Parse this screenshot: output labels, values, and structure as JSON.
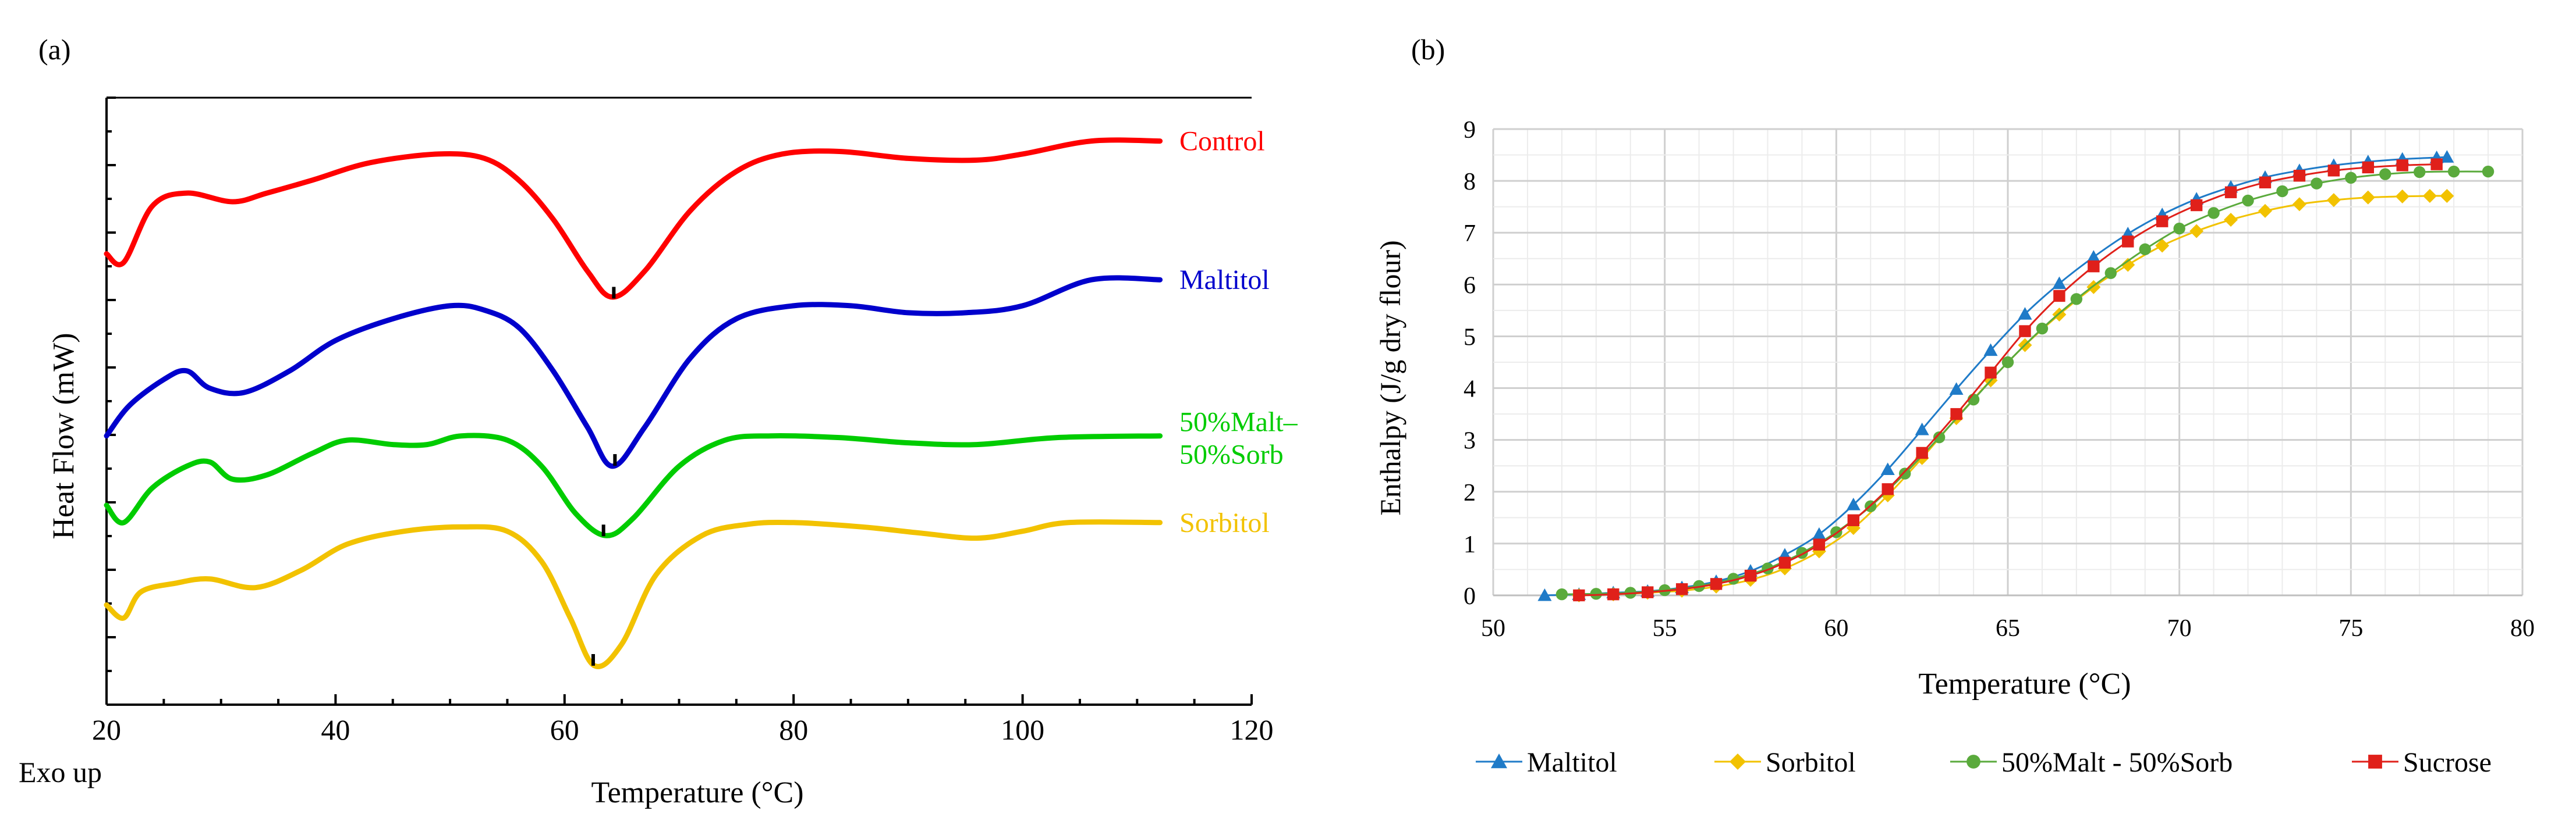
{
  "chart_data": [
    {
      "panel_label": "(a)",
      "type": "line",
      "title": "",
      "xlabel": "Temperature (°C)",
      "ylabel": "Heat Flow (mW)",
      "corner_note": "Exo up",
      "xlim": [
        20,
        120
      ],
      "xticks": [
        "20",
        "40",
        "60",
        "80",
        "100",
        "120"
      ],
      "yunits": "arbitrary (stacked, unlabeled ticks)",
      "series": [
        {
          "name": "Control",
          "color": "#ff0000",
          "x": [
            20,
            21.5,
            24,
            27,
            31,
            34,
            38,
            43,
            49,
            53,
            56,
            59,
            62,
            64.2,
            67,
            71,
            75,
            79,
            84,
            90,
            96,
            100,
            106,
            112
          ],
          "y": [
            5.2,
            5.1,
            5.75,
            5.9,
            5.8,
            5.9,
            6.05,
            6.25,
            6.35,
            6.3,
            6.05,
            5.6,
            5.0,
            4.7,
            5.0,
            5.7,
            6.15,
            6.35,
            6.38,
            6.3,
            6.28,
            6.35,
            6.5,
            6.5
          ],
          "min_marker_x": 64.3
        },
        {
          "name": "Maltitol",
          "color": "#0000cc",
          "x": [
            20,
            22,
            25,
            27,
            29,
            32,
            36,
            40,
            45,
            50,
            53,
            56,
            59,
            62,
            64.2,
            67,
            71,
            75,
            80,
            85,
            90,
            95,
            100,
            106,
            112
          ],
          "y": [
            3.1,
            3.45,
            3.75,
            3.85,
            3.65,
            3.6,
            3.85,
            4.2,
            4.45,
            4.6,
            4.55,
            4.35,
            3.85,
            3.2,
            2.75,
            3.2,
            4.0,
            4.45,
            4.6,
            4.6,
            4.52,
            4.52,
            4.6,
            4.9,
            4.9
          ],
          "min_marker_x": 64.4
        },
        {
          "name": "50%Malt–\n50%Sorb",
          "color": "#00cc00",
          "x": [
            20,
            21.5,
            24,
            27,
            29,
            31,
            34,
            38,
            41,
            45,
            48,
            51,
            55,
            58,
            61,
            63.6,
            66,
            70,
            74,
            78,
            84,
            90,
            96,
            103,
            112
          ],
          "y": [
            2.3,
            2.1,
            2.5,
            2.75,
            2.8,
            2.6,
            2.65,
            2.9,
            3.05,
            3.0,
            3.0,
            3.1,
            3.05,
            2.75,
            2.2,
            1.95,
            2.15,
            2.75,
            3.05,
            3.1,
            3.08,
            3.02,
            3.0,
            3.08,
            3.1
          ],
          "min_marker_x": 63.4
        },
        {
          "name": "Sorbitol",
          "color": "#f2c200",
          "x": [
            20,
            21.5,
            23,
            26,
            29,
            33,
            37,
            41,
            46,
            51,
            55,
            58,
            60.5,
            62.6,
            65,
            68,
            72,
            76,
            80,
            86,
            91,
            96,
            100,
            104,
            112
          ],
          "y": [
            1.15,
            1.0,
            1.3,
            1.4,
            1.45,
            1.35,
            1.55,
            1.85,
            2.0,
            2.05,
            2.0,
            1.65,
            1.0,
            0.45,
            0.7,
            1.5,
            1.95,
            2.08,
            2.1,
            2.05,
            1.98,
            1.92,
            2.0,
            2.1,
            2.1
          ],
          "min_marker_x": 62.5
        }
      ]
    },
    {
      "panel_label": "(b)",
      "type": "line",
      "title": "",
      "xlabel": "Temperature (°C)",
      "ylabel": "Enthalpy (J/g dry flour)",
      "xlim": [
        50,
        80
      ],
      "ylim": [
        0,
        9
      ],
      "xticks": [
        "50",
        "55",
        "60",
        "65",
        "70",
        "75",
        "80"
      ],
      "yticks": [
        "0",
        "1",
        "2",
        "3",
        "4",
        "5",
        "6",
        "7",
        "8",
        "9"
      ],
      "grid": true,
      "legend_position": "bottom",
      "series": [
        {
          "name": "Maltitol",
          "color": "#1f7bc8",
          "marker": "triangle",
          "x": [
            51.5,
            52.5,
            53.5,
            54.5,
            55.5,
            56.5,
            57.5,
            58.5,
            59.5,
            60.5,
            61.5,
            62.5,
            63.5,
            64.5,
            65.5,
            66.5,
            67.5,
            68.5,
            69.5,
            70.5,
            71.5,
            72.5,
            73.5,
            74.5,
            75.5,
            76.5,
            77.5,
            77.8
          ],
          "y": [
            0,
            0.02,
            0.05,
            0.08,
            0.15,
            0.27,
            0.47,
            0.78,
            1.18,
            1.75,
            2.43,
            3.2,
            3.98,
            4.73,
            5.43,
            6.02,
            6.53,
            6.98,
            7.35,
            7.65,
            7.88,
            8.07,
            8.2,
            8.3,
            8.37,
            8.42,
            8.45,
            8.46
          ]
        },
        {
          "name": "Sorbitol",
          "color": "#f2c200",
          "marker": "diamond",
          "x": [
            52.5,
            53.5,
            54.5,
            55.5,
            56.5,
            57.5,
            58.5,
            59.5,
            60.5,
            61.5,
            62.5,
            63.5,
            64.5,
            65.5,
            66.5,
            67.5,
            68.5,
            69.5,
            70.5,
            71.5,
            72.5,
            73.5,
            74.5,
            75.5,
            76.5,
            77.3,
            77.8
          ],
          "y": [
            0,
            0.02,
            0.05,
            0.09,
            0.17,
            0.3,
            0.52,
            0.85,
            1.3,
            1.93,
            2.65,
            3.42,
            4.15,
            4.83,
            5.42,
            5.95,
            6.38,
            6.75,
            7.03,
            7.25,
            7.42,
            7.55,
            7.63,
            7.68,
            7.7,
            7.71,
            7.71
          ]
        },
        {
          "name": "50%Malt - 50%Sorb",
          "color": "#5aaa3c",
          "marker": "circle",
          "x": [
            52,
            53,
            54,
            55,
            56,
            57,
            58,
            59,
            60,
            61,
            62,
            63,
            64,
            65,
            66,
            67,
            68,
            69,
            70,
            71,
            72,
            73,
            74,
            75,
            76,
            77,
            78,
            79
          ],
          "y": [
            0.02,
            0.03,
            0.05,
            0.1,
            0.18,
            0.32,
            0.52,
            0.82,
            1.22,
            1.72,
            2.35,
            3.05,
            3.78,
            4.5,
            5.15,
            5.72,
            6.22,
            6.68,
            7.08,
            7.38,
            7.62,
            7.8,
            7.95,
            8.06,
            8.13,
            8.17,
            8.18,
            8.18
          ]
        },
        {
          "name": "Sucrose",
          "color": "#e0201a",
          "marker": "square",
          "x": [
            52.5,
            53.5,
            54.5,
            55.5,
            56.5,
            57.5,
            58.5,
            59.5,
            60.5,
            61.5,
            62.5,
            63.5,
            64.5,
            65.5,
            66.5,
            67.5,
            68.5,
            69.5,
            70.5,
            71.5,
            72.5,
            73.5,
            74.5,
            75.5,
            76.5,
            77.5
          ],
          "y": [
            0,
            0.02,
            0.06,
            0.12,
            0.22,
            0.38,
            0.63,
            0.98,
            1.45,
            2.05,
            2.75,
            3.5,
            4.3,
            5.1,
            5.78,
            6.35,
            6.83,
            7.22,
            7.53,
            7.78,
            7.97,
            8.1,
            8.2,
            8.26,
            8.3,
            8.32
          ]
        }
      ]
    }
  ]
}
